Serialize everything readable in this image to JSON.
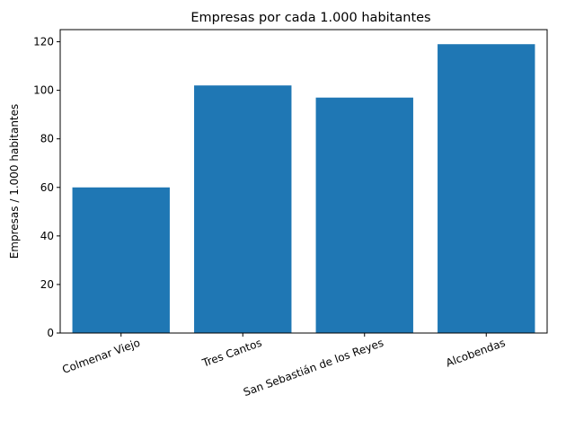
{
  "chart_data": {
    "type": "bar",
    "title": "Empresas por cada 1.000 habitantes",
    "xlabel": "",
    "ylabel": "Empresas / 1.000 habitantes",
    "categories": [
      "Colmenar Viejo",
      "Tres Cantos",
      "San Sebastián de los Reyes",
      "Alcobendas"
    ],
    "values": [
      60,
      102,
      97,
      119
    ],
    "ylim": [
      0,
      125
    ],
    "yticks": [
      "0",
      "20",
      "40",
      "60",
      "80",
      "100",
      "120"
    ],
    "bar_color": "#1f77b4",
    "grid": false,
    "legend": "none"
  }
}
